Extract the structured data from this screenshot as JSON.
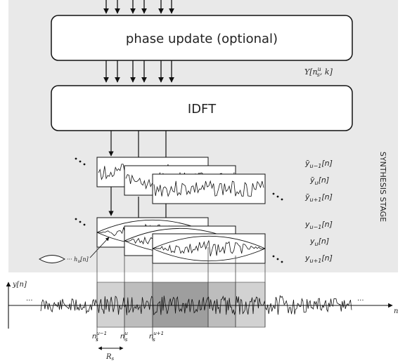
{
  "blocks": {
    "phase_update": "phase update (optional)",
    "idft": "IDFT"
  },
  "labels": {
    "Y": "Y[n",
    "Y_sup": "u",
    "Y_sub": "s",
    "Y_rest": ", k]",
    "synthesis_stage": "SYNTHESIS STAGE",
    "window": "h",
    "window_sub": "u",
    "window_rest": "[n]",
    "y_axis": "y[n]",
    "n_axis": "n",
    "hop": "R",
    "hop_sub": "s",
    "ellipsis": "..."
  },
  "frames_tilde": [
    {
      "base": "ỹ",
      "sub": "u−1",
      "arg": "[n]"
    },
    {
      "base": "ỹ",
      "sub": "u",
      "arg": "[n]"
    },
    {
      "base": "ỹ",
      "sub": "u+1",
      "arg": "[n]"
    }
  ],
  "frames_windowed": [
    {
      "base": "y",
      "sub": "u−1",
      "arg": "[n]"
    },
    {
      "base": "y",
      "sub": "u",
      "arg": "[n]"
    },
    {
      "base": "y",
      "sub": "u+1",
      "arg": "[n]"
    }
  ],
  "time_marks": [
    {
      "base": "n",
      "sub": "s",
      "sup": "u−1"
    },
    {
      "base": "n",
      "sub": "s",
      "sup": "u"
    },
    {
      "base": "n",
      "sub": "s",
      "sup": "u+1"
    }
  ],
  "colors": {
    "background": "#e9e9e9",
    "box": "#ffffff",
    "stroke": "#111111",
    "shade_light": "#d2d2d2",
    "shade_mid": "#bdbdbd",
    "shade_dark": "#9e9e9e"
  }
}
